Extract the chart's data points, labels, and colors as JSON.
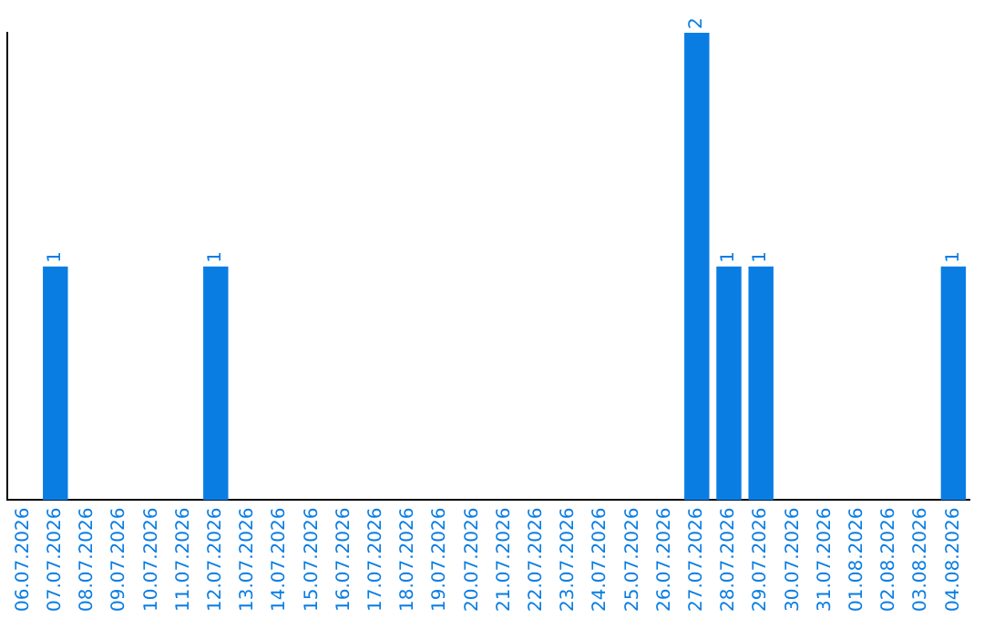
{
  "chart_data": {
    "type": "bar",
    "categories": [
      "06.07.2026",
      "07.07.2026",
      "08.07.2026",
      "09.07.2026",
      "10.07.2026",
      "11.07.2026",
      "12.07.2026",
      "13.07.2026",
      "14.07.2026",
      "15.07.2026",
      "16.07.2026",
      "17.07.2026",
      "18.07.2026",
      "19.07.2026",
      "20.07.2026",
      "21.07.2026",
      "22.07.2026",
      "23.07.2026",
      "24.07.2026",
      "25.07.2026",
      "26.07.2026",
      "27.07.2026",
      "28.07.2026",
      "29.07.2026",
      "30.07.2026",
      "31.07.2026",
      "01.08.2026",
      "02.08.2026",
      "03.08.2026",
      "04.08.2026"
    ],
    "values": [
      0,
      1,
      0,
      0,
      0,
      0,
      1,
      0,
      0,
      0,
      0,
      0,
      0,
      0,
      0,
      0,
      0,
      0,
      0,
      0,
      0,
      2,
      1,
      1,
      0,
      0,
      0,
      0,
      0,
      1
    ],
    "value_labels": [
      null,
      "1",
      null,
      null,
      null,
      null,
      "1",
      null,
      null,
      null,
      null,
      null,
      null,
      null,
      null,
      null,
      null,
      null,
      null,
      null,
      null,
      "2",
      "1",
      "1",
      null,
      null,
      null,
      null,
      null,
      "1"
    ],
    "color": "#0a7de3",
    "grid": false,
    "legend": false,
    "tick_labels": "x"
  }
}
